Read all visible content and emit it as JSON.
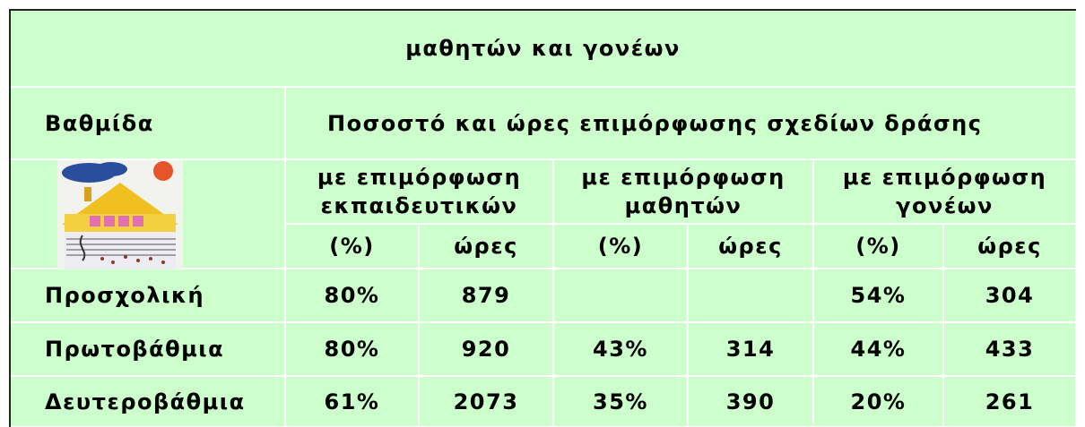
{
  "table": {
    "title": "μαθητών και γονέων",
    "header": [
      "Βαθμίδα",
      "Ποσοστό και ώρες επιμόρφωσης σχεδίων δράσης"
    ],
    "groups": [
      "με επιμόρφωση εκπαιδευτικών",
      "με επιμόρφωση μαθητών",
      "με επιμόρφωση γονέων"
    ],
    "units": [
      "(%)",
      "ώρες",
      "(%)",
      "ώρες",
      "(%)",
      "ώρες"
    ],
    "rows": [
      [
        "Προσχολική",
        "80%",
        "879",
        null,
        null,
        "54%",
        "304"
      ],
      [
        "Πρωτοβάθμια",
        "80%",
        "920",
        "43%",
        "314",
        "44%",
        "433"
      ],
      [
        "Δευτεροβάθμια",
        "61%",
        "2073",
        "35%",
        "390",
        "20%",
        "261"
      ]
    ]
  }
}
